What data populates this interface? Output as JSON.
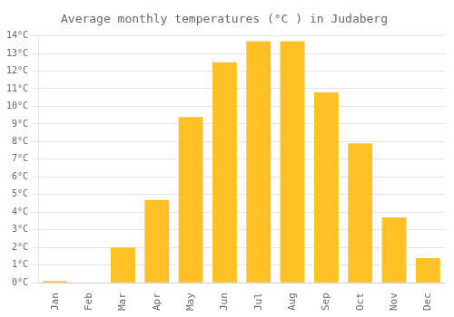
{
  "chart_data": {
    "type": "bar",
    "title": "Average monthly temperatures (°C ) in Judaberg",
    "categories": [
      "Jan",
      "Feb",
      "Mar",
      "Apr",
      "May",
      "Jun",
      "Jul",
      "Aug",
      "Sep",
      "Oct",
      "Nov",
      "Dec"
    ],
    "values": [
      0.1,
      0.0,
      2.0,
      4.7,
      9.4,
      12.5,
      13.7,
      13.7,
      10.8,
      7.9,
      3.7,
      1.4
    ],
    "color": "#FFC125",
    "ylim": [
      0,
      14
    ],
    "yticks": [
      {
        "value": 0,
        "label": "0°C"
      },
      {
        "value": 1,
        "label": "1°C"
      },
      {
        "value": 2,
        "label": "2°C"
      },
      {
        "value": 3,
        "label": "3°C"
      },
      {
        "value": 4,
        "label": "4°C"
      },
      {
        "value": 5,
        "label": "5°C"
      },
      {
        "value": 6,
        "label": "6°C"
      },
      {
        "value": 7,
        "label": "7°C"
      },
      {
        "value": 8,
        "label": "8°C"
      },
      {
        "value": 9,
        "label": "9°C"
      },
      {
        "value": 10,
        "label": "10°C"
      },
      {
        "value": 11,
        "label": "11°C"
      },
      {
        "value": 12,
        "label": "12°C"
      },
      {
        "value": 13,
        "label": "13°C"
      },
      {
        "value": 14,
        "label": "14°C"
      }
    ],
    "grid": true
  }
}
